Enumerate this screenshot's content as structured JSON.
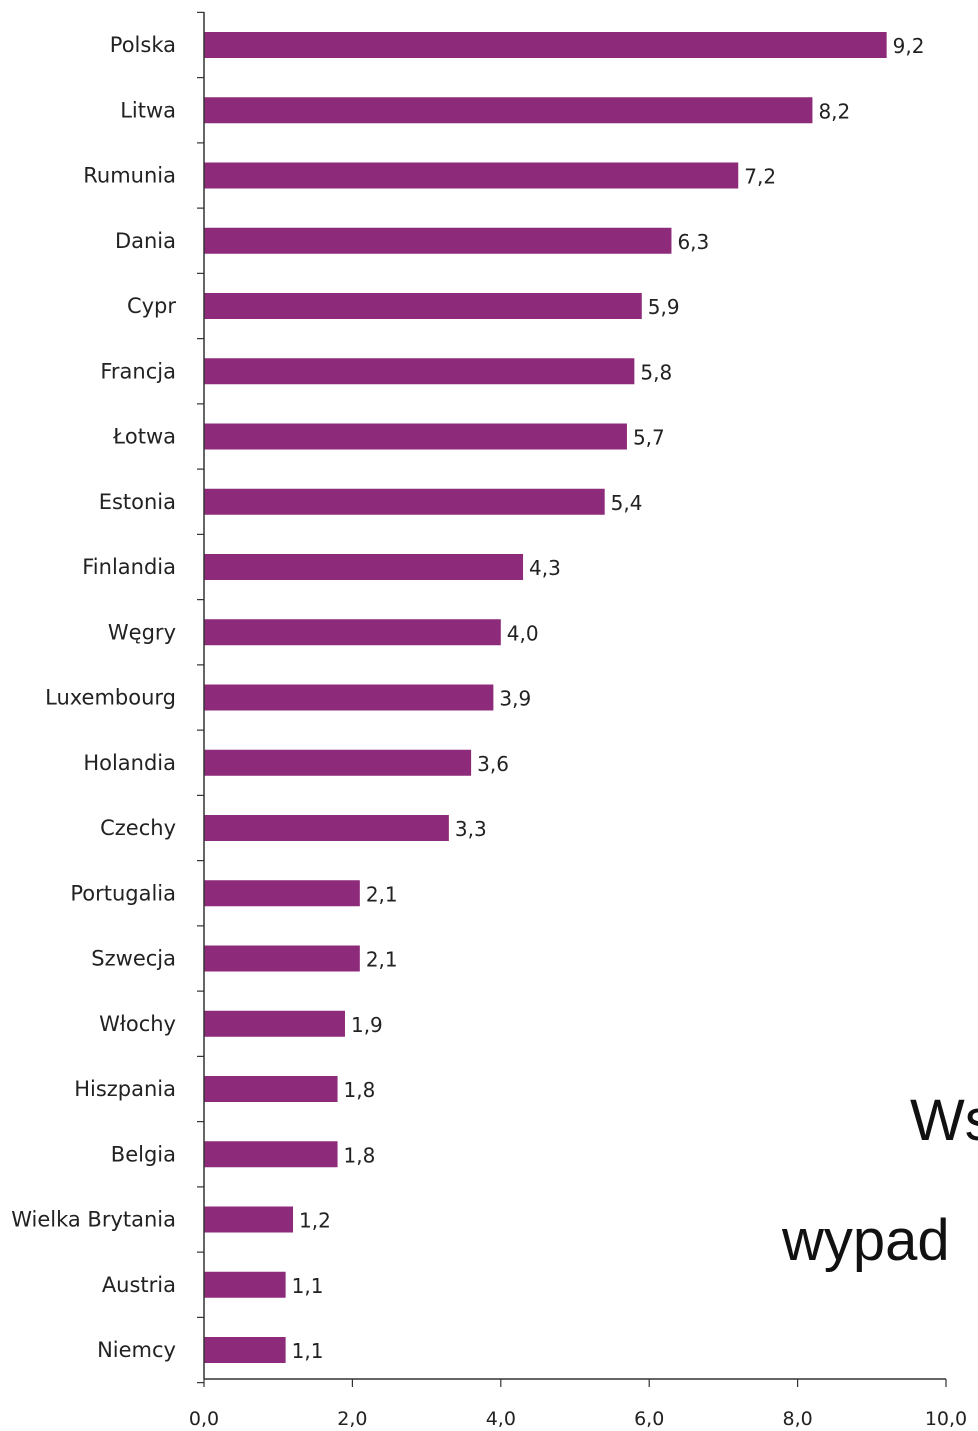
{
  "chart_data": {
    "type": "bar",
    "orientation": "horizontal",
    "categories": [
      "Polska",
      "Litwa",
      "Rumunia",
      "Dania",
      "Cypr",
      "Francja",
      "Łotwa",
      "Estonia",
      "Finlandia",
      "Węgry",
      "Luxembourg",
      "Holandia",
      "Czechy",
      "Portugalia",
      "Szwecja",
      "Włochy",
      "Hiszpania",
      "Belgia",
      "Wielka Brytania",
      "Austria",
      "Niemcy"
    ],
    "values": [
      9.2,
      8.2,
      7.2,
      6.3,
      5.9,
      5.8,
      5.7,
      5.4,
      4.3,
      4.0,
      3.9,
      3.6,
      3.3,
      2.1,
      2.1,
      1.9,
      1.8,
      1.8,
      1.2,
      1.1,
      1.1
    ],
    "value_labels": [
      "9,2",
      "8,2",
      "7,2",
      "6,3",
      "5,9",
      "5,8",
      "5,7",
      "5,4",
      "4,3",
      "4,0",
      "3,9",
      "3,6",
      "3,3",
      "2,1",
      "2,1",
      "1,9",
      "1,8",
      "1,8",
      "1,2",
      "1,1",
      "1,1"
    ],
    "xlim": [
      0,
      10
    ],
    "x_ticks": [
      "0,0",
      "2,0",
      "4,0",
      "6,0",
      "8,0",
      "10,0"
    ],
    "bar_color": "#8e2a7a",
    "grid": false
  },
  "side_text": {
    "line1": "Ws",
    "line2": "wypad"
  }
}
